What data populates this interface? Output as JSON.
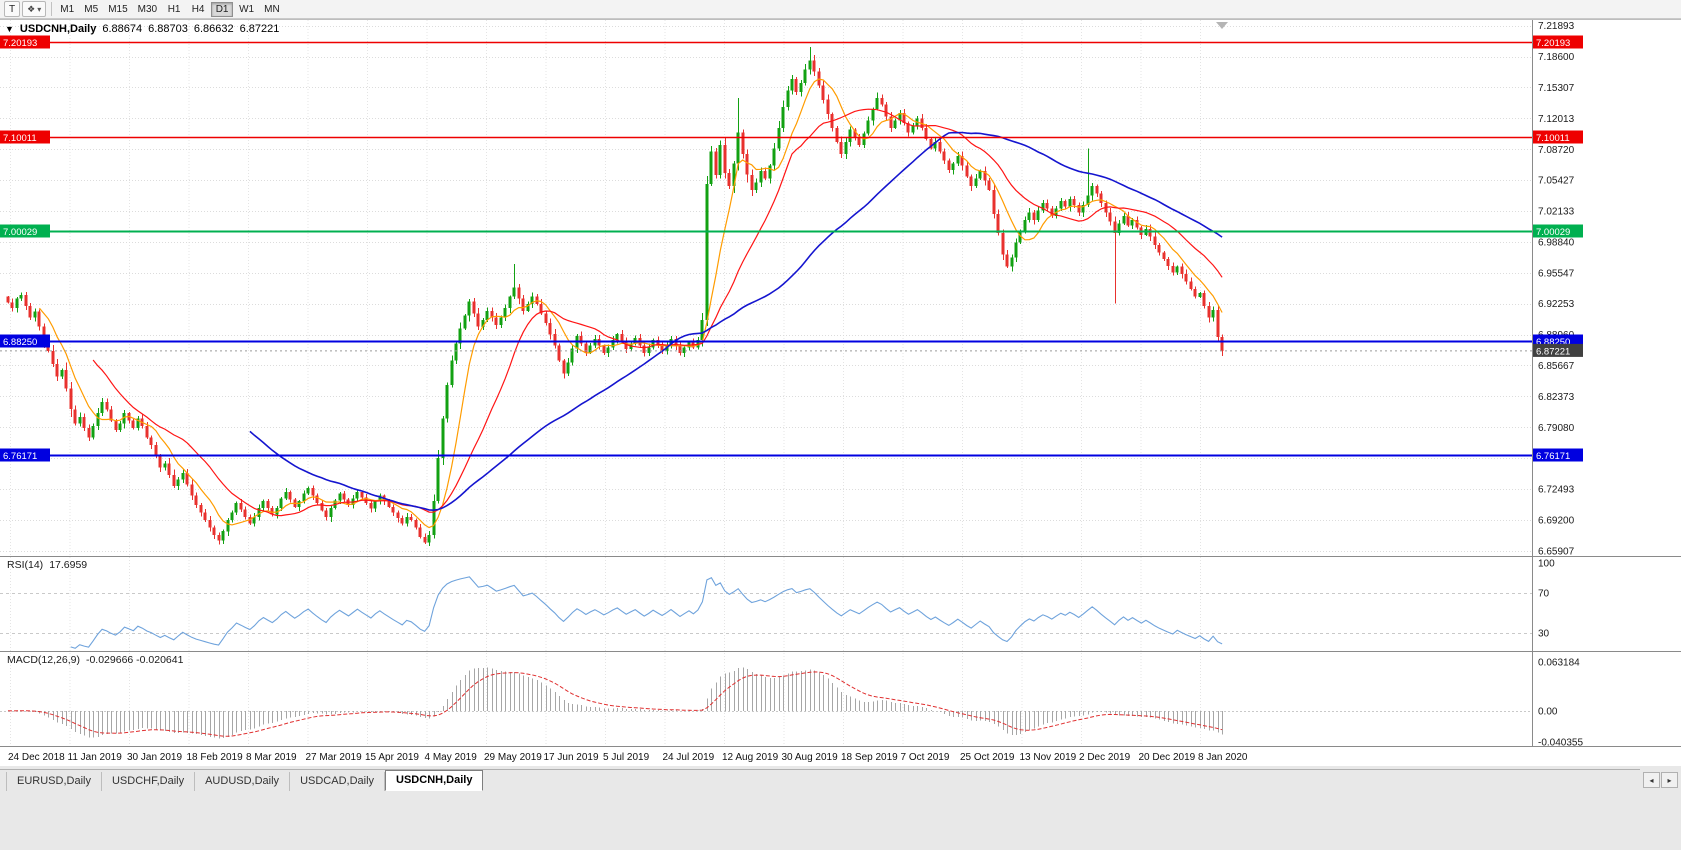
{
  "toolbar": {
    "tool_button_label": "T",
    "timeframes": [
      "M1",
      "M5",
      "M15",
      "M30",
      "H1",
      "H4",
      "D1",
      "W1",
      "MN"
    ],
    "active_timeframe": "D1"
  },
  "title_overlay": {
    "symbol": "USDCNH,Daily",
    "open": "6.88674",
    "high": "6.88703",
    "low": "6.86632",
    "close": "6.87221"
  },
  "indicator_labels": {
    "rsi_name": "RSI(14)",
    "rsi_value": "17.6959",
    "macd_name": "MACD(12,26,9)",
    "macd_values": "-0.029666 -0.020641"
  },
  "tabs": {
    "items": [
      "EURUSD,Daily",
      "USDCHF,Daily",
      "AUDUSD,Daily",
      "USDCAD,Daily",
      "USDCNH,Daily"
    ],
    "active": "USDCNH,Daily"
  },
  "chart_data": {
    "type": "candlestick",
    "symbol": "USDCNH",
    "period": "Daily",
    "ohlc_display": [
      "6.88674",
      "6.88703",
      "6.86632",
      "6.87221"
    ],
    "current_price": 6.87221,
    "price_ticks": [
      "7.21893",
      "7.18600",
      "7.15307",
      "7.12013",
      "7.08720",
      "7.05427",
      "7.02133",
      "6.98840",
      "6.95547",
      "6.92253",
      "6.88960",
      "6.85667",
      "6.82373",
      "6.79080",
      "6.75787",
      "6.72493",
      "6.69200",
      "6.65907"
    ],
    "x_labels": [
      "24 Dec 2018",
      "11 Jan 2019",
      "30 Jan 2019",
      "18 Feb 2019",
      "8 Mar 2019",
      "27 Mar 2019",
      "15 Apr 2019",
      "4 May 2019",
      "29 May 2019",
      "17 Jun 2019",
      "5 Jul 2019",
      "24 Jul 2019",
      "12 Aug 2019",
      "30 Aug 2019",
      "18 Sep 2019",
      "7 Oct 2019",
      "25 Oct 2019",
      "13 Nov 2019",
      "2 Dec 2019",
      "20 Dec 2019",
      "8 Jan 2020"
    ],
    "hlines": [
      {
        "price": 7.20193,
        "label": "7.20193",
        "color": "#ee0000",
        "width": 1.5
      },
      {
        "price": 7.10011,
        "label": "7.10011",
        "color": "#ee0000",
        "width": 1.5
      },
      {
        "price": 7.00029,
        "label": "7.00029",
        "color": "#00b050",
        "width": 2
      },
      {
        "price": 6.8825,
        "label": "6.88250",
        "color": "#0000e0",
        "width": 2
      },
      {
        "price": 6.76171,
        "label": "6.76171",
        "color": "#0000e0",
        "width": 2
      }
    ],
    "colors": {
      "up": "#12a112",
      "down": "#e8312e",
      "current_tag": "#404040"
    },
    "moving_averages": [
      {
        "period": 8,
        "color": "#ff9c00"
      },
      {
        "period": 20,
        "color": "#ff1515"
      },
      {
        "period": 55,
        "color": "#1515cf"
      }
    ],
    "first_open": 6.93,
    "closes": [
      6.924,
      6.918,
      6.928,
      6.932,
      6.92,
      6.908,
      6.914,
      6.898,
      6.88,
      6.872,
      6.858,
      6.845,
      6.852,
      6.832,
      6.81,
      6.795,
      6.802,
      6.79,
      6.78,
      6.792,
      6.806,
      6.818,
      6.81,
      6.798,
      6.788,
      6.795,
      6.806,
      6.798,
      6.79,
      6.8,
      6.792,
      6.78,
      6.772,
      6.76,
      6.748,
      6.752,
      6.74,
      6.728,
      6.735,
      6.742,
      6.73,
      6.718,
      6.708,
      6.7,
      6.692,
      6.684,
      6.676,
      6.67,
      6.68,
      6.692,
      6.7,
      6.71,
      6.703,
      6.695,
      6.688,
      6.695,
      6.705,
      6.712,
      6.705,
      6.698,
      6.705,
      6.715,
      6.722,
      6.714,
      6.706,
      6.712,
      6.72,
      6.726,
      6.718,
      6.71,
      6.702,
      6.695,
      6.705,
      6.713,
      6.72,
      6.714,
      6.708,
      6.715,
      6.722,
      6.716,
      6.71,
      6.704,
      6.712,
      6.718,
      6.712,
      6.706,
      6.7,
      6.694,
      6.688,
      6.695,
      6.692,
      6.684,
      6.674,
      6.668,
      6.676,
      6.712,
      6.758,
      6.8,
      6.836,
      6.862,
      6.88,
      6.896,
      6.91,
      6.925,
      6.912,
      6.898,
      6.905,
      6.915,
      6.908,
      6.9,
      6.908,
      6.918,
      6.93,
      6.94,
      6.928,
      6.915,
      6.922,
      6.93,
      6.922,
      6.912,
      6.902,
      6.89,
      6.878,
      6.862,
      6.848,
      6.86,
      6.875,
      6.888,
      6.88,
      6.87,
      6.878,
      6.885,
      6.878,
      6.87,
      6.876,
      6.884,
      6.89,
      6.882,
      6.874,
      6.88,
      6.886,
      6.878,
      6.87,
      6.876,
      6.884,
      6.878,
      6.872,
      6.878,
      6.885,
      6.878,
      6.87,
      6.876,
      6.882,
      6.876,
      6.884,
      6.905,
      7.05,
      7.085,
      7.06,
      7.092,
      7.062,
      7.048,
      7.072,
      7.105,
      7.082,
      7.06,
      7.044,
      7.052,
      7.064,
      7.056,
      7.07,
      7.088,
      7.11,
      7.132,
      7.15,
      7.162,
      7.148,
      7.158,
      7.172,
      7.182,
      7.17,
      7.155,
      7.14,
      7.125,
      7.11,
      7.095,
      7.082,
      7.095,
      7.108,
      7.1,
      7.092,
      7.104,
      7.118,
      7.13,
      7.142,
      7.135,
      7.122,
      7.11,
      7.118,
      7.126,
      7.115,
      7.105,
      7.112,
      7.12,
      7.11,
      7.098,
      7.088,
      7.095,
      7.085,
      7.075,
      7.065,
      7.072,
      7.08,
      7.07,
      7.058,
      7.048,
      7.056,
      7.064,
      7.054,
      7.044,
      7.018,
      6.998,
      6.975,
      6.962,
      6.972,
      6.988,
      7.0,
      7.012,
      7.02,
      7.012,
      7.022,
      7.03,
      7.024,
      7.016,
      7.024,
      7.032,
      7.026,
      7.034,
      7.028,
      7.02,
      7.028,
      7.038,
      7.048,
      7.04,
      7.03,
      7.02,
      7.01,
      6.998,
      7.008,
      7.016,
      7.006,
      7.012,
      7.004,
      6.996,
      7.002,
      6.994,
      6.985,
      6.977,
      6.97,
      6.963,
      6.956,
      6.962,
      6.954,
      6.946,
      6.938,
      6.93,
      6.934,
      6.92,
      6.908,
      6.916,
      6.887,
      6.872
    ],
    "wick_overrides": {
      "113": {
        "high": 6.965
      },
      "163": {
        "high": 7.142
      },
      "179": {
        "high": 7.196
      },
      "241": {
        "high": 7.088
      },
      "247": {
        "low": 6.923
      }
    },
    "rsi": {
      "period": 14,
      "value_display": "17.6959",
      "levels": [
        100,
        70,
        30
      ],
      "color": "#6fa3dc"
    },
    "macd": {
      "fast": 12,
      "slow": 26,
      "signal": 9,
      "axis_labels": [
        "0.063184",
        "0.00",
        "-0.040355"
      ],
      "axis_values": [
        0.063184,
        0,
        -0.040355
      ],
      "bar_color": "#a6a6a6",
      "signal_color": "#e03030"
    }
  }
}
